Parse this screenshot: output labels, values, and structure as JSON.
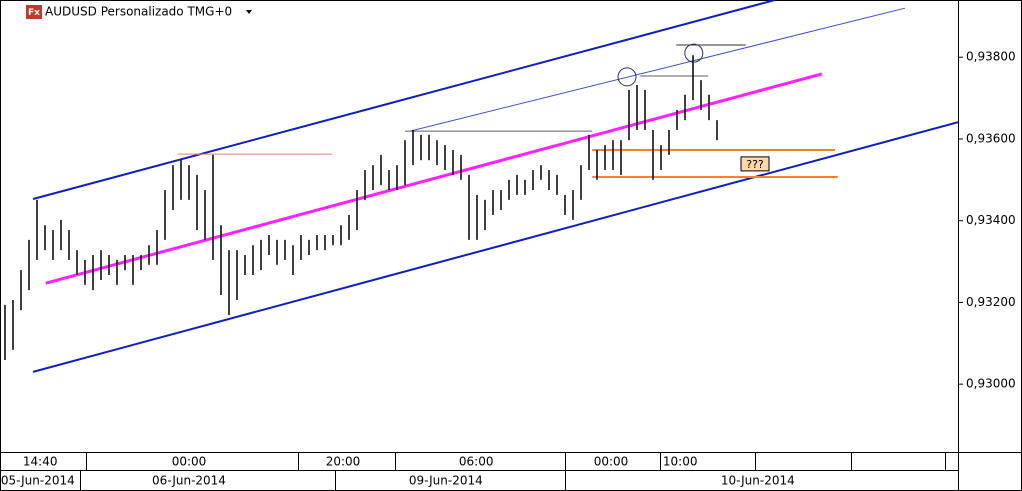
{
  "chart_data": {
    "type": "hilo",
    "title": "AUDUSD Personalizado TMG+0",
    "icon_label": "Fx",
    "color": "#000000",
    "x": [
      0,
      1,
      2,
      3,
      4,
      5,
      6,
      7,
      8,
      9,
      10,
      11,
      12,
      13,
      14,
      15,
      16,
      17,
      18,
      19,
      20,
      21,
      22,
      23,
      24,
      25,
      26,
      27,
      28,
      29,
      30,
      31,
      32,
      33,
      34,
      35,
      36,
      37,
      38,
      39,
      40,
      41,
      42,
      43,
      44,
      45,
      46,
      47,
      48,
      49,
      50,
      51,
      52,
      53,
      54,
      55,
      56,
      57,
      58,
      59,
      60,
      61,
      62,
      63,
      64,
      65,
      66,
      67,
      68,
      69,
      70,
      71,
      72,
      73,
      74,
      75,
      76,
      77,
      78,
      79,
      80,
      81,
      82,
      83,
      84,
      85,
      86,
      87,
      88,
      89
    ],
    "high": [
      0.93194,
      0.93206,
      0.93279,
      0.93353,
      0.93451,
      0.93389,
      0.93377,
      0.93402,
      0.93377,
      0.93328,
      0.93304,
      0.93316,
      0.93328,
      0.93316,
      0.93304,
      0.93316,
      0.93316,
      0.93316,
      0.9334,
      0.93377,
      0.93475,
      0.93536,
      0.93548,
      0.93536,
      0.93512,
      0.93475,
      0.93561,
      0.93389,
      0.93328,
      0.93328,
      0.93316,
      0.9334,
      0.93353,
      0.93365,
      0.93353,
      0.93353,
      0.9334,
      0.93365,
      0.93353,
      0.93365,
      0.93365,
      0.93365,
      0.93389,
      0.93414,
      0.93475,
      0.93524,
      0.93536,
      0.93561,
      0.93524,
      0.93536,
      0.93597,
      0.93622,
      0.9361,
      0.9361,
      0.93597,
      0.93585,
      0.93573,
      0.93561,
      0.93512,
      0.93463,
      0.93451,
      0.93475,
      0.93475,
      0.935,
      0.93512,
      0.935,
      0.93524,
      0.93536,
      0.93524,
      0.93512,
      0.93463,
      0.93475,
      0.93536,
      0.9361,
      0.93573,
      0.93585,
      0.93597,
      0.93597,
      0.9372,
      0.93732,
      0.9372,
      0.93622,
      0.93585,
      0.93622,
      0.93671,
      0.93708,
      0.93805,
      0.93744,
      0.93708,
      0.93646
    ],
    "low": [
      0.93059,
      0.93084,
      0.93181,
      0.9323,
      0.93304,
      0.93328,
      0.93304,
      0.93328,
      0.93304,
      0.93267,
      0.93243,
      0.9323,
      0.93255,
      0.93267,
      0.93243,
      0.93279,
      0.93243,
      0.93279,
      0.93292,
      0.93292,
      0.93353,
      0.93426,
      0.93451,
      0.93451,
      0.93377,
      0.93353,
      0.93304,
      0.93218,
      0.93169,
      0.93206,
      0.93267,
      0.93267,
      0.93279,
      0.93316,
      0.93292,
      0.93304,
      0.93267,
      0.93304,
      0.93316,
      0.93328,
      0.93328,
      0.9334,
      0.9334,
      0.93353,
      0.93377,
      0.93451,
      0.93475,
      0.93487,
      0.93475,
      0.93475,
      0.93487,
      0.93536,
      0.93548,
      0.93548,
      0.93536,
      0.93524,
      0.93512,
      0.935,
      0.93353,
      0.93353,
      0.93377,
      0.93414,
      0.93426,
      0.93451,
      0.93463,
      0.93463,
      0.93475,
      0.935,
      0.93475,
      0.93463,
      0.93414,
      0.93402,
      0.93451,
      0.93524,
      0.935,
      0.93524,
      0.93524,
      0.93512,
      0.93597,
      0.93622,
      0.93622,
      0.935,
      0.93524,
      0.93561,
      0.93622,
      0.93646,
      0.93695,
      0.93671,
      0.93646,
      0.93597
    ],
    "xlim": [
      -0.625,
      119.125
    ],
    "ylim": [
      0.92834,
      0.9394
    ],
    "yticks": [
      {
        "value": 0.93,
        "label": "0,93000"
      },
      {
        "value": 0.932,
        "label": "0,93200"
      },
      {
        "value": 0.934,
        "label": "0,93400"
      },
      {
        "value": 0.936,
        "label": "0,93600"
      },
      {
        "value": 0.938,
        "label": "0,93800"
      }
    ],
    "xticks": [
      {
        "value": 4.4,
        "label": "14:40"
      },
      {
        "value": 23,
        "label": "00:00"
      },
      {
        "value": 42.25,
        "label": "20:00"
      },
      {
        "value": 58.9,
        "label": "06:00"
      },
      {
        "value": 75.75,
        "label": "00:00"
      },
      {
        "value": 84.4,
        "label": "10:00"
      }
    ],
    "date_ticks": [
      {
        "value": 4.1,
        "label": "05-Jun-2014"
      },
      {
        "value": 23,
        "label": "06-Jun-2014"
      },
      {
        "value": 55.1,
        "label": "09-Jun-2014"
      },
      {
        "value": 94.1,
        "label": "10-Jun-2014"
      }
    ],
    "drawings": [
      {
        "x": [
          3.5,
          96.25
        ],
        "y": [
          0.93453,
          0.9394
        ],
        "color": "#1020c0",
        "width": 2
      },
      {
        "x": [
          3.5,
          119.125
        ],
        "y": [
          0.9303,
          0.93641
        ],
        "color": "#1020c0",
        "width": 2
      },
      {
        "x": [
          5.1,
          102.1
        ],
        "y": [
          0.93247,
          0.93759
        ],
        "color": "#ff20ff",
        "width": 3
      },
      {
        "x": [
          50.6,
          112.5
        ],
        "y": [
          0.93619,
          0.9392
        ],
        "color": "#4050d0",
        "width": 1
      },
      {
        "x": [
          50,
          73.4
        ],
        "y": [
          0.93619,
          0.93619
        ],
        "color": "#606060",
        "width": 1
      },
      {
        "x": [
          21.6,
          40.9
        ],
        "y": [
          0.93563,
          0.93563
        ],
        "color": "#e08070",
        "width": 1
      },
      {
        "x": [
          79.4,
          87.9
        ],
        "y": [
          0.93754,
          0.93754
        ],
        "color": "#606060",
        "width": 1
      },
      {
        "x": [
          83.9,
          92.6
        ],
        "y": [
          0.9383,
          0.9383
        ],
        "color": "#303030",
        "width": 1
      },
      {
        "x": [
          73.4,
          103.75
        ],
        "y": [
          0.93573,
          0.93573
        ],
        "color": "#ff7f27",
        "width": 2
      },
      {
        "x": [
          73.4,
          104.1
        ],
        "y": [
          0.93507,
          0.93507
        ],
        "color": "#ff7f27",
        "width": 2
      }
    ],
    "circles": [
      {
        "x": 77.75,
        "y": 0.93752
      },
      {
        "x": 86.1,
        "y": 0.9381
      }
    ],
    "annotation": {
      "x": 93.75,
      "y": 0.93539,
      "text": "???"
    }
  }
}
